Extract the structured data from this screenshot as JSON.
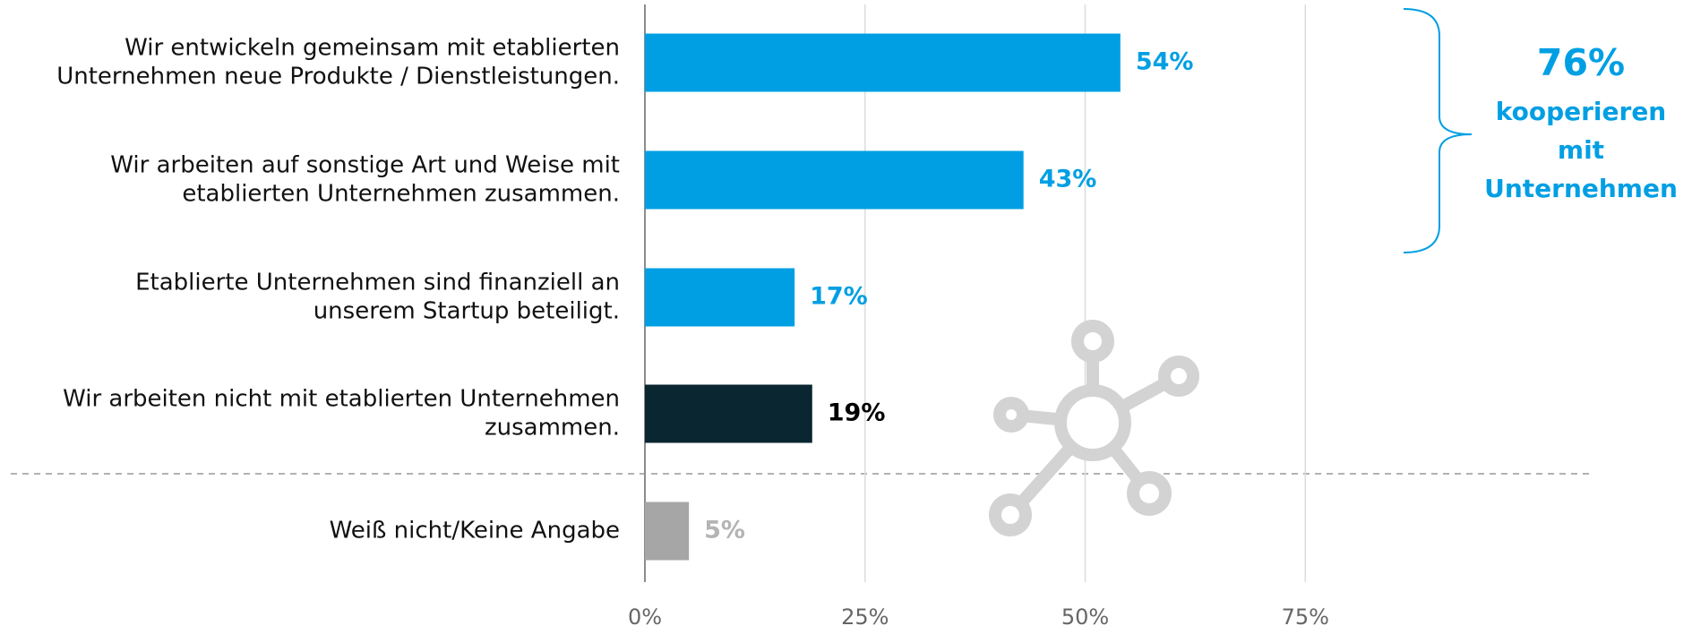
{
  "chart_data": {
    "type": "bar",
    "orientation": "horizontal",
    "categories": [
      [
        "Wir entwickeln gemeinsam mit etablierten",
        "Unternehmen neue Produkte / Dienstleistungen."
      ],
      [
        "Wir arbeiten auf sonstige Art und Weise mit",
        "etablierten Unternehmen zusammen."
      ],
      [
        "Etablierte Unternehmen sind finanziell an",
        "unserem Startup beteiligt."
      ],
      [
        "Wir arbeiten nicht mit etablierten Unternehmen",
        "zusammen."
      ],
      [
        "Weiß nicht/Keine Angabe"
      ]
    ],
    "values": [
      54,
      43,
      17,
      19,
      5
    ],
    "value_labels": [
      "54%",
      "43%",
      "17%",
      "19%",
      "5%"
    ],
    "colors": [
      "#009fe3",
      "#009fe3",
      "#009fe3",
      "#0a2630",
      "#a6a6a6"
    ],
    "label_colors": [
      "#009fe3",
      "#009fe3",
      "#009fe3",
      "#000000",
      "#b4b4b4"
    ],
    "xlim": [
      0,
      100
    ],
    "xticks": [
      {
        "value": 0,
        "label": "0%"
      },
      {
        "value": 25,
        "label": "25%"
      },
      {
        "value": 50,
        "label": "50%"
      },
      {
        "value": 75,
        "label": "75%"
      }
    ],
    "grid": true,
    "annotation": {
      "label": "76%",
      "text": [
        "kooperieren",
        "mit",
        "Unternehmen"
      ],
      "color": "#009fe3"
    }
  }
}
